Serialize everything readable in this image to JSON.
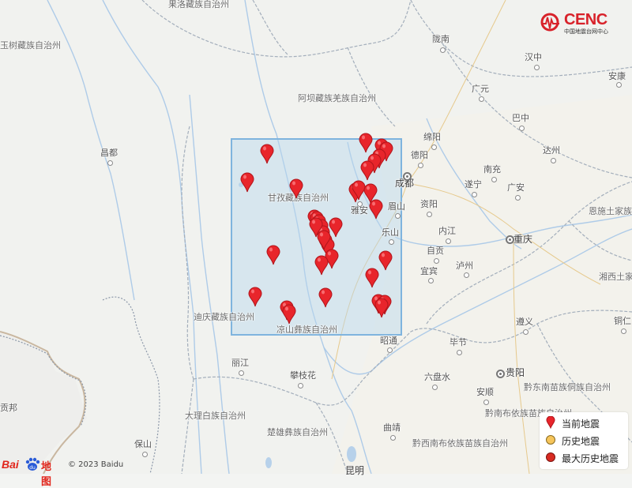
{
  "brand": {
    "logo_text": "CENC",
    "logo_subtext": "中国地震台网中心"
  },
  "labels": {
    "guoluo": "果洛藏族自治州",
    "yushu": "玉树藏族自治州",
    "aba": "阿坝藏族羌族自治州",
    "ganzi": "甘孜藏族自治州",
    "liangshan": "凉山彝族自治州",
    "diqing": "迪庆藏族自治州",
    "dali": "大理白族自治州",
    "chuxiong": "楚雄彝族自治州",
    "qiandongnan": "黔东南苗族侗族自治州",
    "qiannan": "黔南布依族苗族自治州",
    "qianxinan": "黔西南布依族苗族自治州",
    "xiangxi": "湘西土家",
    "enshi": "恩施土家族",
    "longnan": "陇南",
    "hanzhong": "汉中",
    "ankang": "安康",
    "guangyuan": "广元",
    "bazhong": "巴中",
    "mianyang": "绵阳",
    "dazhou": "达州",
    "deyang": "德阳",
    "nanchong": "南充",
    "chengdu": "成都",
    "suining": "遂宁",
    "guangan": "广安",
    "ziyang": "资阳",
    "yaan": "雅安",
    "meishan": "眉山",
    "neijiang": "内江",
    "chongqing": "重庆",
    "leshan": "乐山",
    "zigong": "自贡",
    "luzhou": "泸州",
    "yibin": "宜宾",
    "zunyi": "遵义",
    "tongren": "铜仁",
    "qamdo": "昌都",
    "zhaotong": "昭通",
    "bijie": "毕节",
    "liupanshui": "六盘水",
    "guiyang": "贵阳",
    "anshun": "安顺",
    "lijiang": "丽江",
    "panzhihua": "攀枝花",
    "qujing": "曲靖",
    "baoshan": "保山",
    "kunming": "昆明",
    "gongbu": "贡邦"
  },
  "legend": {
    "current": "当前地震",
    "historical": "历史地震",
    "max_historical": "最大历史地震"
  },
  "footer": {
    "baidu_logo": "Bai 地图",
    "copyright": "© 2023 Baidu"
  },
  "colors": {
    "pin_red": "#e8252b",
    "pin_outline": "#b0151b",
    "max_dot": "#d82b22",
    "hist_dot": "#f6c55b",
    "selection_fill": "#b9d7ee",
    "selection_border": "#7fb4de",
    "province_border": "#9aa8b8",
    "river": "#a9c6e4"
  }
}
